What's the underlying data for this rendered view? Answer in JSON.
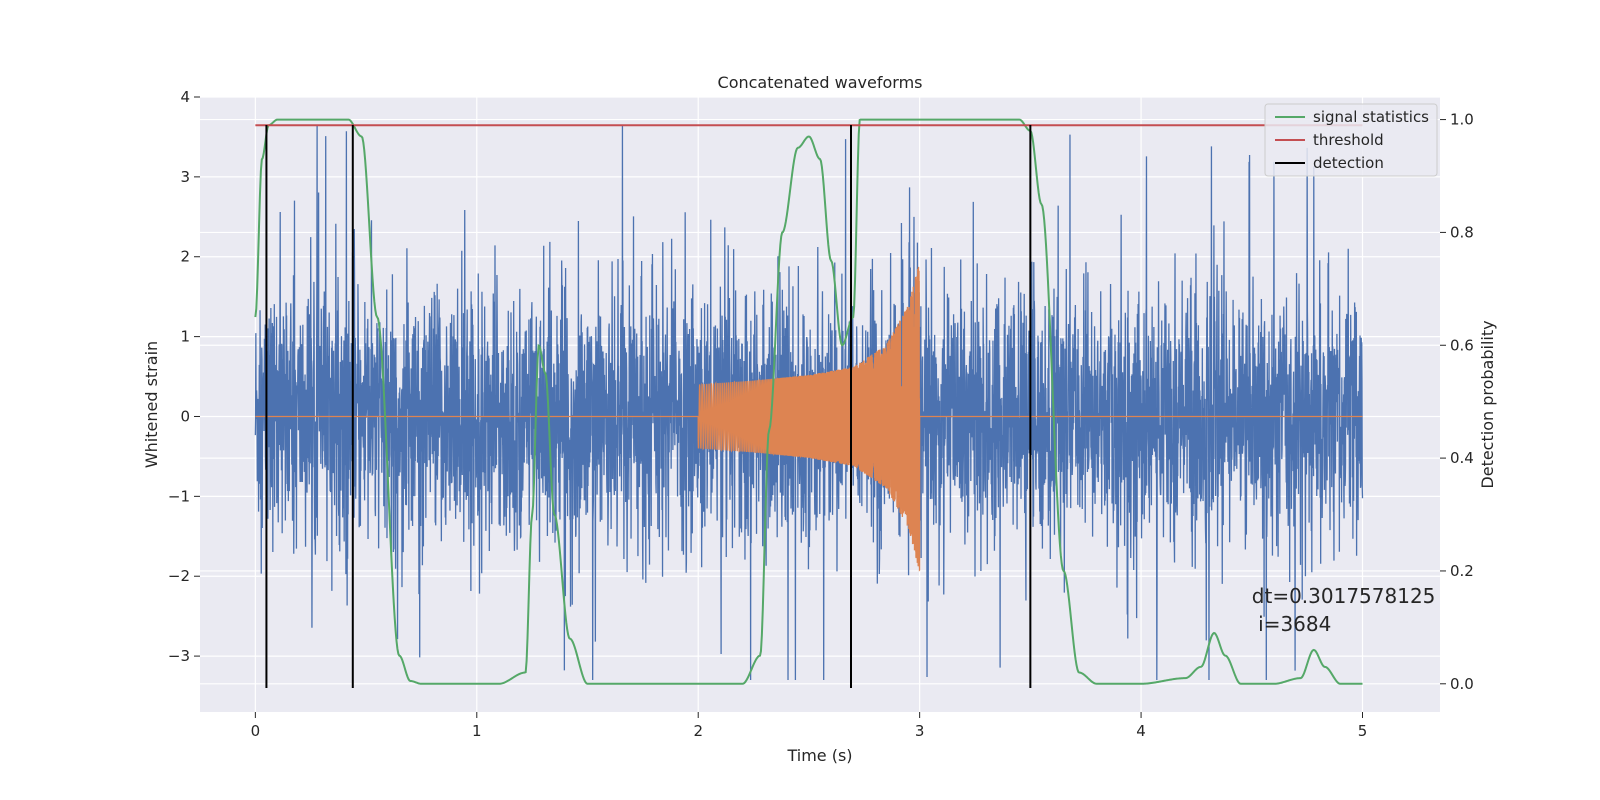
{
  "chart_data": {
    "type": "line",
    "title": "Concatenated waveforms",
    "xlabel": "Time (s)",
    "ylabel": "Whitened strain",
    "y2label": "Detection probability",
    "xlim": [
      -0.25,
      5.35
    ],
    "ylim": [
      -3.7,
      4.0
    ],
    "y2lim": [
      -0.05,
      1.04
    ],
    "xticks": [
      0,
      1,
      2,
      3,
      4,
      5
    ],
    "yticks": [
      -3,
      -2,
      -1,
      0,
      1,
      2,
      3,
      4
    ],
    "y2ticks": [
      0.0,
      0.2,
      0.4,
      0.6,
      0.8,
      1.0
    ],
    "grid": true,
    "legend_position": "top-right",
    "colors": {
      "strain": "#4c72b0",
      "waveform": "#dd8452",
      "signal_statistics": "#55a868",
      "threshold": "#c44e52",
      "detection": "#000000",
      "background": "#eaeaf2",
      "grid": "#ffffff"
    },
    "strain": {
      "x_range": [
        0,
        5
      ],
      "amplitude_range": [
        -3.3,
        3.65
      ]
    },
    "waveform": {
      "x_range": [
        2.0,
        3.0
      ],
      "envelope": [
        [
          2.0,
          0.4
        ],
        [
          2.25,
          0.45
        ],
        [
          2.5,
          0.52
        ],
        [
          2.7,
          0.62
        ],
        [
          2.85,
          0.9
        ],
        [
          2.95,
          1.4
        ],
        [
          3.0,
          1.95
        ]
      ]
    },
    "series": [
      {
        "name": "signal statistics",
        "axis": "right",
        "x": [
          0.0,
          0.03,
          0.06,
          0.1,
          0.15,
          0.3,
          0.42,
          0.48,
          0.55,
          0.65,
          0.7,
          0.75,
          0.9,
          1.0,
          1.1,
          1.22,
          1.25,
          1.28,
          1.31,
          1.35,
          1.42,
          1.5,
          1.6,
          1.8,
          2.0,
          2.2,
          2.28,
          2.32,
          2.38,
          2.45,
          2.5,
          2.55,
          2.6,
          2.65,
          2.7,
          2.73,
          2.8,
          3.0,
          3.2,
          3.45,
          3.5,
          3.55,
          3.65,
          3.72,
          3.8,
          4.0,
          4.2,
          4.27,
          4.33,
          4.38,
          4.45,
          4.6,
          4.72,
          4.78,
          4.83,
          4.9,
          5.0
        ],
        "y": [
          0.65,
          0.93,
          0.99,
          1.0,
          1.0,
          1.0,
          1.0,
          0.97,
          0.65,
          0.05,
          0.005,
          0.0,
          0.0,
          0.0,
          0.0,
          0.02,
          0.3,
          0.6,
          0.55,
          0.3,
          0.08,
          0.0,
          0.0,
          0.0,
          0.0,
          0.0,
          0.05,
          0.45,
          0.8,
          0.95,
          0.97,
          0.93,
          0.75,
          0.6,
          0.65,
          1.0,
          1.0,
          1.0,
          1.0,
          1.0,
          0.98,
          0.85,
          0.2,
          0.02,
          0.0,
          0.0,
          0.01,
          0.03,
          0.09,
          0.05,
          0.0,
          0.0,
          0.01,
          0.06,
          0.03,
          0.0,
          0.0
        ]
      },
      {
        "name": "threshold",
        "axis": "right",
        "x": [
          0,
          5
        ],
        "y": [
          0.99,
          0.99
        ]
      },
      {
        "name": "detection",
        "axis": "left",
        "x": [
          0.05,
          0.44,
          2.69,
          3.5
        ],
        "y_range": [
          -3.4,
          3.65
        ]
      }
    ],
    "annotation": {
      "line1": "dt=0.3017578125",
      "line2": " i=3684",
      "x": 4.5,
      "y": 0.09
    }
  }
}
